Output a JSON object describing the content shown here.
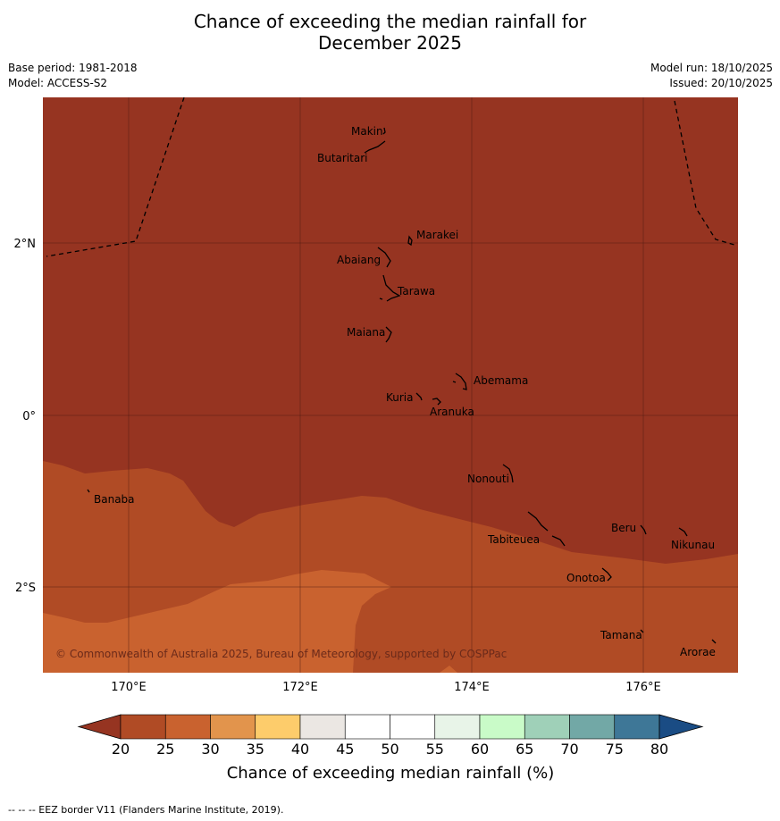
{
  "title_line1": "Chance of exceeding the median rainfall for",
  "title_line2": "December 2025",
  "meta_left": {
    "base_period": "Base period: 1981-2018",
    "model": "Model: ACCESS-S2"
  },
  "meta_right": {
    "model_run": "Model run: 18/10/2025",
    "issued": "Issued: 20/10/2025"
  },
  "map": {
    "lat_labels": [
      "2°N",
      "0°",
      "2°S"
    ],
    "lon_labels": [
      "170°E",
      "172°E",
      "174°E",
      "176°E"
    ],
    "copyright": "© Commonwealth of Australia 2025, Bureau of Meteorology, supported by COSPPac",
    "places": [
      "Makin",
      "Butaritari",
      "Marakei",
      "Abaiang",
      "Tarawa",
      "Maiana",
      "Abemama",
      "Kuria",
      "Aranuka",
      "Banaba",
      "Nonouti",
      "Beru",
      "Tabiteuea",
      "Nikunau",
      "Onotoa",
      "Tamana",
      "Arorae"
    ],
    "zone_colors": {
      "below_20": "#963421",
      "20_25": "#b04b25",
      "25_30": "#c9622f"
    }
  },
  "colorbar": {
    "ticks": [
      "20",
      "25",
      "30",
      "35",
      "40",
      "45",
      "50",
      "55",
      "60",
      "65",
      "70",
      "75",
      "80"
    ],
    "colors": [
      "#b04b25",
      "#c9622f",
      "#e2944c",
      "#fdcc6b",
      "#ebe7e3",
      "#ffffff",
      "#ffffff",
      "#e8f4e8",
      "#c9fbc8",
      "#9fd0b8",
      "#72a8a6",
      "#3e7797"
    ],
    "under_color": "#963421",
    "over_color": "#1a4c84",
    "title": "Chance of exceeding median rainfall (%)"
  },
  "footer": "--  --  -- EEZ border V11 (Flanders Marine Institute, 2019)."
}
